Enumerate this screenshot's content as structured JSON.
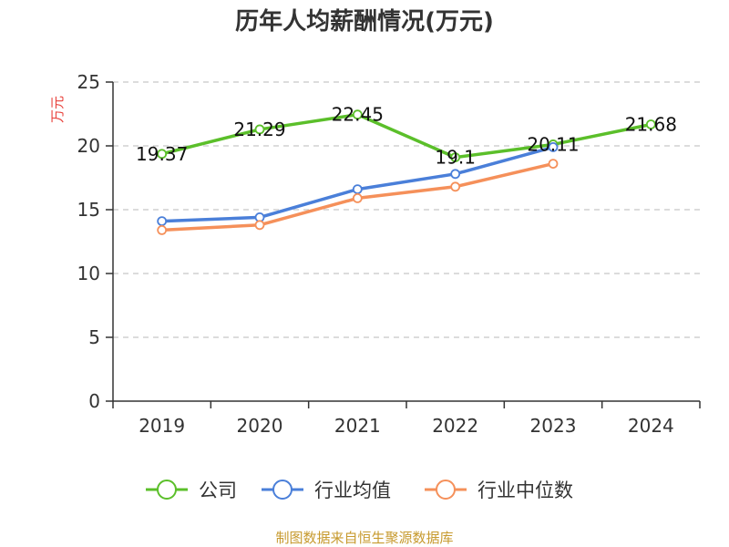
{
  "colors": {
    "series": [
      "#5BBF2A",
      "#4A7FD9",
      "#F5905A"
    ],
    "axis": "#333333",
    "grid": "#C8C8C8",
    "ylabel": "#E8413B",
    "source": "#C79A2E"
  },
  "footer": {
    "source": "制图数据来自恒生聚源数据库"
  },
  "chart_data": {
    "type": "line",
    "title": "历年人均薪酬情况(万元)",
    "ylabel": "万元",
    "xlabel": "",
    "categories": [
      "2019",
      "2020",
      "2021",
      "2022",
      "2023",
      "2024"
    ],
    "ylim": [
      0,
      25
    ],
    "yticks": [
      0,
      5,
      10,
      15,
      20,
      25
    ],
    "grid": true,
    "legend_position": "bottom",
    "series": [
      {
        "name": "公司",
        "values": [
          19.37,
          21.29,
          22.45,
          19.1,
          20.11,
          21.68
        ],
        "labels": [
          "19.37",
          "21.29",
          "22.45",
          "19.1",
          "20.11",
          "21.68"
        ]
      },
      {
        "name": "行业均值",
        "values": [
          14.1,
          14.4,
          16.6,
          17.8,
          19.9,
          null
        ]
      },
      {
        "name": "行业中位数",
        "values": [
          13.4,
          13.8,
          15.9,
          16.8,
          18.6,
          null
        ]
      }
    ]
  }
}
